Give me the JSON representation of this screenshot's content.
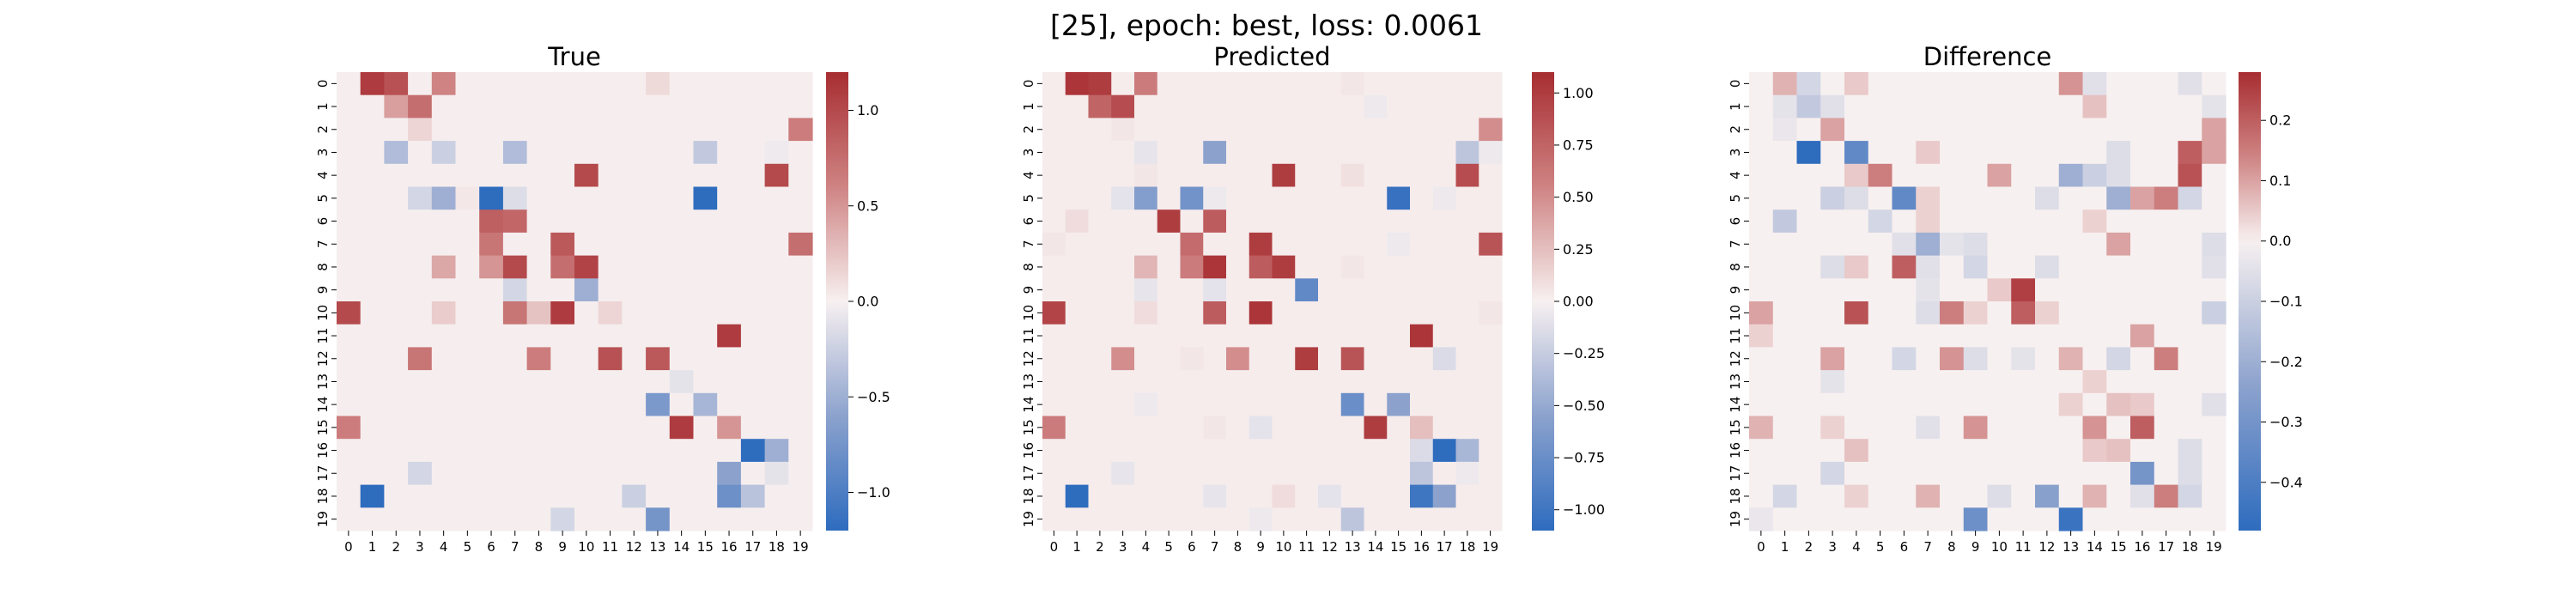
{
  "figure": {
    "suptitle": "[25], epoch: best, loss: 0.0061"
  },
  "chart_data": [
    {
      "type": "heatmap",
      "title": "True",
      "rows": [
        "0",
        "1",
        "2",
        "3",
        "4",
        "5",
        "6",
        "7",
        "8",
        "9",
        "10",
        "11",
        "12",
        "13",
        "14",
        "15",
        "16",
        "17",
        "18",
        "19"
      ],
      "cols": [
        "0",
        "1",
        "2",
        "3",
        "4",
        "5",
        "6",
        "7",
        "8",
        "9",
        "10",
        "11",
        "12",
        "13",
        "14",
        "15",
        "16",
        "17",
        "18",
        "19"
      ],
      "colormap": "vlag",
      "vmin": -1.2,
      "vmax": 1.2,
      "colorbar_ticks": [
        -1.0,
        -0.5,
        0.0,
        0.5,
        1.0
      ],
      "colorbar_ticklabels": [
        "−1.0",
        "−0.5",
        "0.0",
        "0.5",
        "1.0"
      ],
      "entries": [
        [
          0,
          1,
          1.1
        ],
        [
          0,
          2,
          0.95
        ],
        [
          0,
          4,
          0.6
        ],
        [
          0,
          13,
          0.12
        ],
        [
          1,
          2,
          0.45
        ],
        [
          1,
          3,
          0.75
        ],
        [
          2,
          3,
          0.15
        ],
        [
          2,
          19,
          0.65
        ],
        [
          3,
          2,
          -0.4
        ],
        [
          3,
          4,
          -0.25
        ],
        [
          3,
          7,
          -0.4
        ],
        [
          3,
          15,
          -0.3
        ],
        [
          3,
          18,
          -0.05
        ],
        [
          4,
          10,
          1.0
        ],
        [
          4,
          18,
          1.0
        ],
        [
          5,
          5,
          0.05
        ],
        [
          5,
          3,
          -0.2
        ],
        [
          5,
          4,
          -0.5
        ],
        [
          5,
          6,
          -1.2
        ],
        [
          5,
          7,
          -0.15
        ],
        [
          5,
          15,
          -1.2
        ],
        [
          6,
          6,
          0.85
        ],
        [
          6,
          7,
          0.8
        ],
        [
          7,
          6,
          0.7
        ],
        [
          7,
          9,
          0.9
        ],
        [
          7,
          19,
          0.75
        ],
        [
          8,
          4,
          0.4
        ],
        [
          8,
          6,
          0.5
        ],
        [
          8,
          7,
          1.0
        ],
        [
          8,
          9,
          0.75
        ],
        [
          8,
          10,
          1.05
        ],
        [
          9,
          7,
          -0.2
        ],
        [
          9,
          10,
          -0.5
        ],
        [
          10,
          0,
          1.0
        ],
        [
          10,
          4,
          0.2
        ],
        [
          10,
          7,
          0.7
        ],
        [
          10,
          8,
          0.25
        ],
        [
          10,
          9,
          1.1
        ],
        [
          10,
          11,
          0.15
        ],
        [
          11,
          16,
          1.1
        ],
        [
          12,
          3,
          0.7
        ],
        [
          12,
          8,
          0.65
        ],
        [
          12,
          11,
          0.95
        ],
        [
          12,
          13,
          0.9
        ],
        [
          13,
          14,
          -0.1
        ],
        [
          14,
          13,
          -0.7
        ],
        [
          14,
          15,
          -0.45
        ],
        [
          15,
          0,
          0.65
        ],
        [
          15,
          14,
          1.1
        ],
        [
          15,
          16,
          0.5
        ],
        [
          16,
          17,
          -1.2
        ],
        [
          16,
          18,
          -0.5
        ],
        [
          17,
          3,
          -0.2
        ],
        [
          17,
          16,
          -0.6
        ],
        [
          17,
          18,
          -0.1
        ],
        [
          18,
          1,
          -1.2
        ],
        [
          18,
          12,
          -0.25
        ],
        [
          18,
          16,
          -0.8
        ],
        [
          18,
          17,
          -0.35
        ],
        [
          19,
          9,
          -0.2
        ],
        [
          19,
          13,
          -0.75
        ]
      ],
      "background": 0.01
    },
    {
      "type": "heatmap",
      "title": "Predicted",
      "rows": [
        "0",
        "1",
        "2",
        "3",
        "4",
        "5",
        "6",
        "7",
        "8",
        "9",
        "10",
        "11",
        "12",
        "13",
        "14",
        "15",
        "16",
        "17",
        "18",
        "19"
      ],
      "cols": [
        "0",
        "1",
        "2",
        "3",
        "4",
        "5",
        "6",
        "7",
        "8",
        "9",
        "10",
        "11",
        "12",
        "13",
        "14",
        "15",
        "16",
        "17",
        "18",
        "19"
      ],
      "colormap": "vlag",
      "vmin": -1.1,
      "vmax": 1.1,
      "colorbar_ticks": [
        -1.0,
        -0.75,
        -0.5,
        -0.25,
        0.0,
        0.25,
        0.5,
        0.75,
        1.0
      ],
      "colorbar_ticklabels": [
        "−1.00",
        "−0.75",
        "−0.50",
        "−0.25",
        "0.00",
        "0.25",
        "0.50",
        "0.75",
        "1.00"
      ],
      "entries": [
        [
          0,
          1,
          1.05
        ],
        [
          0,
          2,
          1.0
        ],
        [
          0,
          4,
          0.6
        ],
        [
          0,
          13,
          0.05
        ],
        [
          1,
          2,
          0.75
        ],
        [
          1,
          3,
          0.9
        ],
        [
          1,
          14,
          -0.05
        ],
        [
          2,
          19,
          0.5
        ],
        [
          2,
          3,
          0.05
        ],
        [
          3,
          7,
          -0.55
        ],
        [
          3,
          18,
          -0.3
        ],
        [
          3,
          4,
          -0.08
        ],
        [
          3,
          19,
          -0.05
        ],
        [
          4,
          10,
          1.0
        ],
        [
          4,
          18,
          0.9
        ],
        [
          4,
          4,
          0.05
        ],
        [
          4,
          13,
          0.08
        ],
        [
          5,
          4,
          -0.6
        ],
        [
          5,
          6,
          -0.7
        ],
        [
          5,
          15,
          -1.05
        ],
        [
          5,
          3,
          -0.1
        ],
        [
          5,
          7,
          -0.05
        ],
        [
          5,
          17,
          -0.05
        ],
        [
          6,
          1,
          0.1
        ],
        [
          6,
          5,
          1.0
        ],
        [
          6,
          7,
          0.8
        ],
        [
          7,
          6,
          0.7
        ],
        [
          7,
          9,
          1.0
        ],
        [
          7,
          19,
          0.85
        ],
        [
          7,
          0,
          0.05
        ],
        [
          7,
          15,
          -0.05
        ],
        [
          8,
          4,
          0.3
        ],
        [
          8,
          6,
          0.6
        ],
        [
          8,
          7,
          1.05
        ],
        [
          8,
          9,
          0.8
        ],
        [
          8,
          10,
          1.0
        ],
        [
          8,
          13,
          0.05
        ],
        [
          9,
          11,
          -0.8
        ],
        [
          9,
          7,
          -0.1
        ],
        [
          9,
          4,
          -0.08
        ],
        [
          10,
          0,
          0.95
        ],
        [
          10,
          7,
          0.8
        ],
        [
          10,
          9,
          1.05
        ],
        [
          10,
          4,
          0.1
        ],
        [
          10,
          19,
          0.05
        ],
        [
          11,
          16,
          1.05
        ],
        [
          12,
          3,
          0.5
        ],
        [
          12,
          8,
          0.5
        ],
        [
          12,
          11,
          1.0
        ],
        [
          12,
          13,
          0.85
        ],
        [
          12,
          17,
          -0.15
        ],
        [
          12,
          6,
          0.05
        ],
        [
          14,
          13,
          -0.75
        ],
        [
          14,
          15,
          -0.55
        ],
        [
          14,
          4,
          -0.05
        ],
        [
          15,
          0,
          0.6
        ],
        [
          15,
          14,
          1.0
        ],
        [
          15,
          16,
          0.25
        ],
        [
          15,
          9,
          -0.1
        ],
        [
          15,
          7,
          0.05
        ],
        [
          16,
          17,
          -1.1
        ],
        [
          16,
          18,
          -0.4
        ],
        [
          16,
          16,
          -0.15
        ],
        [
          17,
          16,
          -0.3
        ],
        [
          17,
          3,
          -0.08
        ],
        [
          17,
          18,
          -0.05
        ],
        [
          18,
          1,
          -1.1
        ],
        [
          18,
          16,
          -1.0
        ],
        [
          18,
          17,
          -0.55
        ],
        [
          18,
          10,
          0.1
        ],
        [
          18,
          7,
          -0.08
        ],
        [
          18,
          12,
          -0.1
        ],
        [
          19,
          13,
          -0.3
        ],
        [
          19,
          9,
          -0.05
        ]
      ],
      "background": 0.02
    },
    {
      "type": "heatmap",
      "title": "Difference",
      "rows": [
        "0",
        "1",
        "2",
        "3",
        "4",
        "5",
        "6",
        "7",
        "8",
        "9",
        "10",
        "11",
        "12",
        "13",
        "14",
        "15",
        "16",
        "17",
        "18",
        "19"
      ],
      "cols": [
        "0",
        "1",
        "2",
        "3",
        "4",
        "5",
        "6",
        "7",
        "8",
        "9",
        "10",
        "11",
        "12",
        "13",
        "14",
        "15",
        "16",
        "17",
        "18",
        "19"
      ],
      "colormap": "vlag",
      "vmin": -0.48,
      "vmax": 0.28,
      "colorbar_ticks": [
        -0.4,
        -0.3,
        -0.2,
        -0.1,
        0.0,
        0.1,
        0.2
      ],
      "colorbar_ticklabels": [
        "−0.4",
        "−0.3",
        "−0.2",
        "−0.1",
        "0.0",
        "0.1",
        "0.2"
      ],
      "entries": [
        [
          0,
          1,
          0.08
        ],
        [
          0,
          2,
          -0.08
        ],
        [
          0,
          4,
          0.05
        ],
        [
          0,
          13,
          0.12
        ],
        [
          0,
          14,
          -0.05
        ],
        [
          0,
          18,
          -0.05
        ],
        [
          1,
          1,
          -0.04
        ],
        [
          1,
          2,
          -0.12
        ],
        [
          1,
          3,
          -0.05
        ],
        [
          1,
          14,
          0.06
        ],
        [
          1,
          19,
          -0.04
        ],
        [
          2,
          3,
          0.1
        ],
        [
          2,
          19,
          0.1
        ],
        [
          2,
          1,
          -0.03
        ],
        [
          3,
          2,
          -0.48
        ],
        [
          3,
          4,
          -0.35
        ],
        [
          3,
          7,
          0.05
        ],
        [
          3,
          15,
          -0.06
        ],
        [
          3,
          18,
          0.2
        ],
        [
          3,
          19,
          0.1
        ],
        [
          4,
          4,
          0.05
        ],
        [
          4,
          5,
          0.15
        ],
        [
          4,
          10,
          0.1
        ],
        [
          4,
          13,
          -0.2
        ],
        [
          4,
          14,
          -0.1
        ],
        [
          4,
          15,
          -0.06
        ],
        [
          4,
          18,
          0.22
        ],
        [
          5,
          3,
          -0.1
        ],
        [
          5,
          4,
          -0.06
        ],
        [
          5,
          6,
          -0.35
        ],
        [
          5,
          7,
          0.04
        ],
        [
          5,
          12,
          -0.06
        ],
        [
          5,
          15,
          -0.2
        ],
        [
          5,
          16,
          0.1
        ],
        [
          5,
          17,
          0.15
        ],
        [
          5,
          18,
          -0.08
        ],
        [
          6,
          1,
          -0.12
        ],
        [
          6,
          5,
          -0.08
        ],
        [
          6,
          7,
          0.04
        ],
        [
          6,
          14,
          0.04
        ],
        [
          7,
          6,
          -0.05
        ],
        [
          7,
          7,
          -0.2
        ],
        [
          7,
          8,
          -0.04
        ],
        [
          7,
          9,
          -0.06
        ],
        [
          7,
          15,
          0.1
        ],
        [
          7,
          19,
          -0.06
        ],
        [
          8,
          3,
          -0.06
        ],
        [
          8,
          4,
          0.05
        ],
        [
          8,
          6,
          0.2
        ],
        [
          8,
          7,
          -0.05
        ],
        [
          8,
          9,
          -0.08
        ],
        [
          8,
          12,
          -0.06
        ],
        [
          8,
          19,
          -0.05
        ],
        [
          9,
          7,
          -0.04
        ],
        [
          9,
          11,
          0.25
        ],
        [
          9,
          10,
          0.05
        ],
        [
          10,
          0,
          0.1
        ],
        [
          10,
          4,
          0.22
        ],
        [
          10,
          7,
          -0.06
        ],
        [
          10,
          8,
          0.15
        ],
        [
          10,
          9,
          0.04
        ],
        [
          10,
          11,
          0.2
        ],
        [
          10,
          12,
          0.04
        ],
        [
          10,
          19,
          -0.1
        ],
        [
          11,
          16,
          0.1
        ],
        [
          11,
          0,
          0.04
        ],
        [
          12,
          3,
          0.1
        ],
        [
          12,
          6,
          -0.08
        ],
        [
          12,
          8,
          0.12
        ],
        [
          12,
          9,
          -0.06
        ],
        [
          12,
          11,
          -0.04
        ],
        [
          12,
          13,
          0.08
        ],
        [
          12,
          15,
          -0.08
        ],
        [
          12,
          17,
          0.15
        ],
        [
          13,
          14,
          0.04
        ],
        [
          13,
          3,
          -0.04
        ],
        [
          14,
          13,
          0.04
        ],
        [
          14,
          15,
          0.06
        ],
        [
          14,
          16,
          0.05
        ],
        [
          14,
          19,
          -0.05
        ],
        [
          15,
          0,
          0.08
        ],
        [
          15,
          3,
          0.04
        ],
        [
          15,
          9,
          0.12
        ],
        [
          15,
          14,
          0.12
        ],
        [
          15,
          16,
          0.2
        ],
        [
          15,
          7,
          -0.05
        ],
        [
          16,
          4,
          0.06
        ],
        [
          16,
          14,
          0.05
        ],
        [
          16,
          15,
          0.06
        ],
        [
          16,
          18,
          -0.06
        ],
        [
          17,
          3,
          -0.08
        ],
        [
          17,
          16,
          -0.3
        ],
        [
          17,
          18,
          -0.06
        ],
        [
          18,
          1,
          -0.08
        ],
        [
          18,
          4,
          0.04
        ],
        [
          18,
          7,
          0.08
        ],
        [
          18,
          10,
          -0.06
        ],
        [
          18,
          12,
          -0.25
        ],
        [
          18,
          14,
          0.08
        ],
        [
          18,
          16,
          -0.05
        ],
        [
          18,
          17,
          0.15
        ],
        [
          18,
          18,
          -0.08
        ],
        [
          19,
          9,
          -0.32
        ],
        [
          19,
          13,
          -0.45
        ],
        [
          19,
          0,
          -0.03
        ]
      ],
      "background": 0.0
    }
  ]
}
